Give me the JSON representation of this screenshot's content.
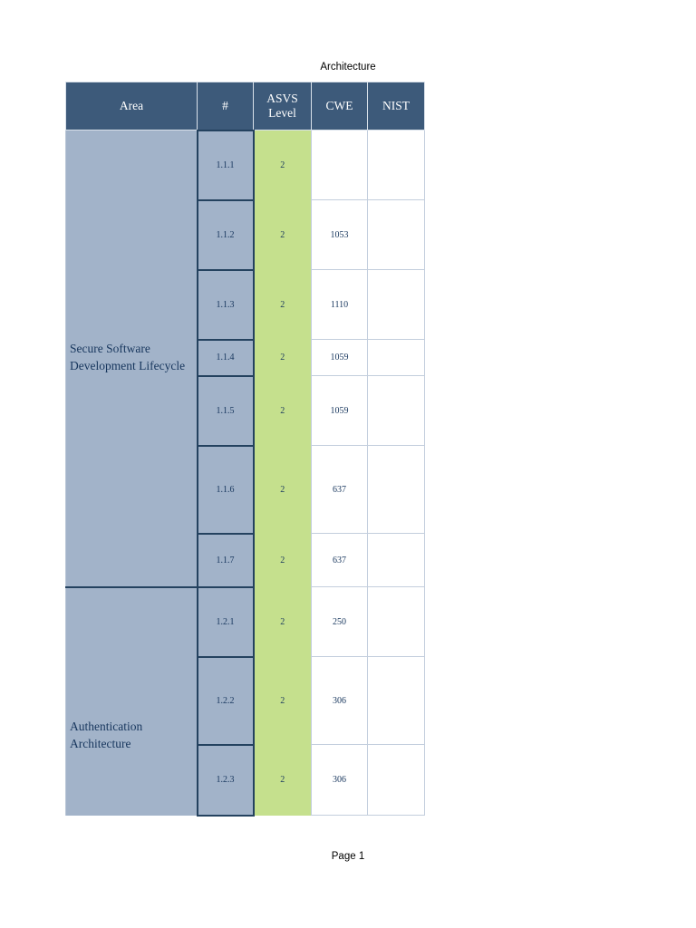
{
  "page": {
    "header_note": "Architecture",
    "footer": "Page 1"
  },
  "table": {
    "columns": [
      "Area",
      "#",
      "ASVS Level",
      "CWE",
      "NIST"
    ],
    "groups": [
      {
        "area": "Secure Software Development Lifecycle",
        "rows": [
          {
            "id": "1.1.1",
            "level": "2",
            "cwe": "",
            "nist": ""
          },
          {
            "id": "1.1.2",
            "level": "2",
            "cwe": "1053",
            "nist": ""
          },
          {
            "id": "1.1.3",
            "level": "2",
            "cwe": "1110",
            "nist": ""
          },
          {
            "id": "1.1.4",
            "level": "2",
            "cwe": "1059",
            "nist": ""
          },
          {
            "id": "1.1.5",
            "level": "2",
            "cwe": "1059",
            "nist": ""
          },
          {
            "id": "1.1.6",
            "level": "2",
            "cwe": "637",
            "nist": ""
          },
          {
            "id": "1.1.7",
            "level": "2",
            "cwe": "637",
            "nist": ""
          }
        ]
      },
      {
        "area": "Authentication Architecture",
        "rows": [
          {
            "id": "1.2.1",
            "level": "2",
            "cwe": "250",
            "nist": ""
          },
          {
            "id": "1.2.2",
            "level": "2",
            "cwe": "306",
            "nist": ""
          },
          {
            "id": "1.2.3",
            "level": "2",
            "cwe": "306",
            "nist": ""
          }
        ]
      }
    ],
    "colors": {
      "header_bg": "#3d5a7a",
      "header_text": "#ffffff",
      "area_bg": "#a2b3c9",
      "level_bg": "#c5e08d",
      "body_text": "#17365d",
      "dark_border": "#24425f",
      "light_border": "#c3cedd"
    }
  }
}
